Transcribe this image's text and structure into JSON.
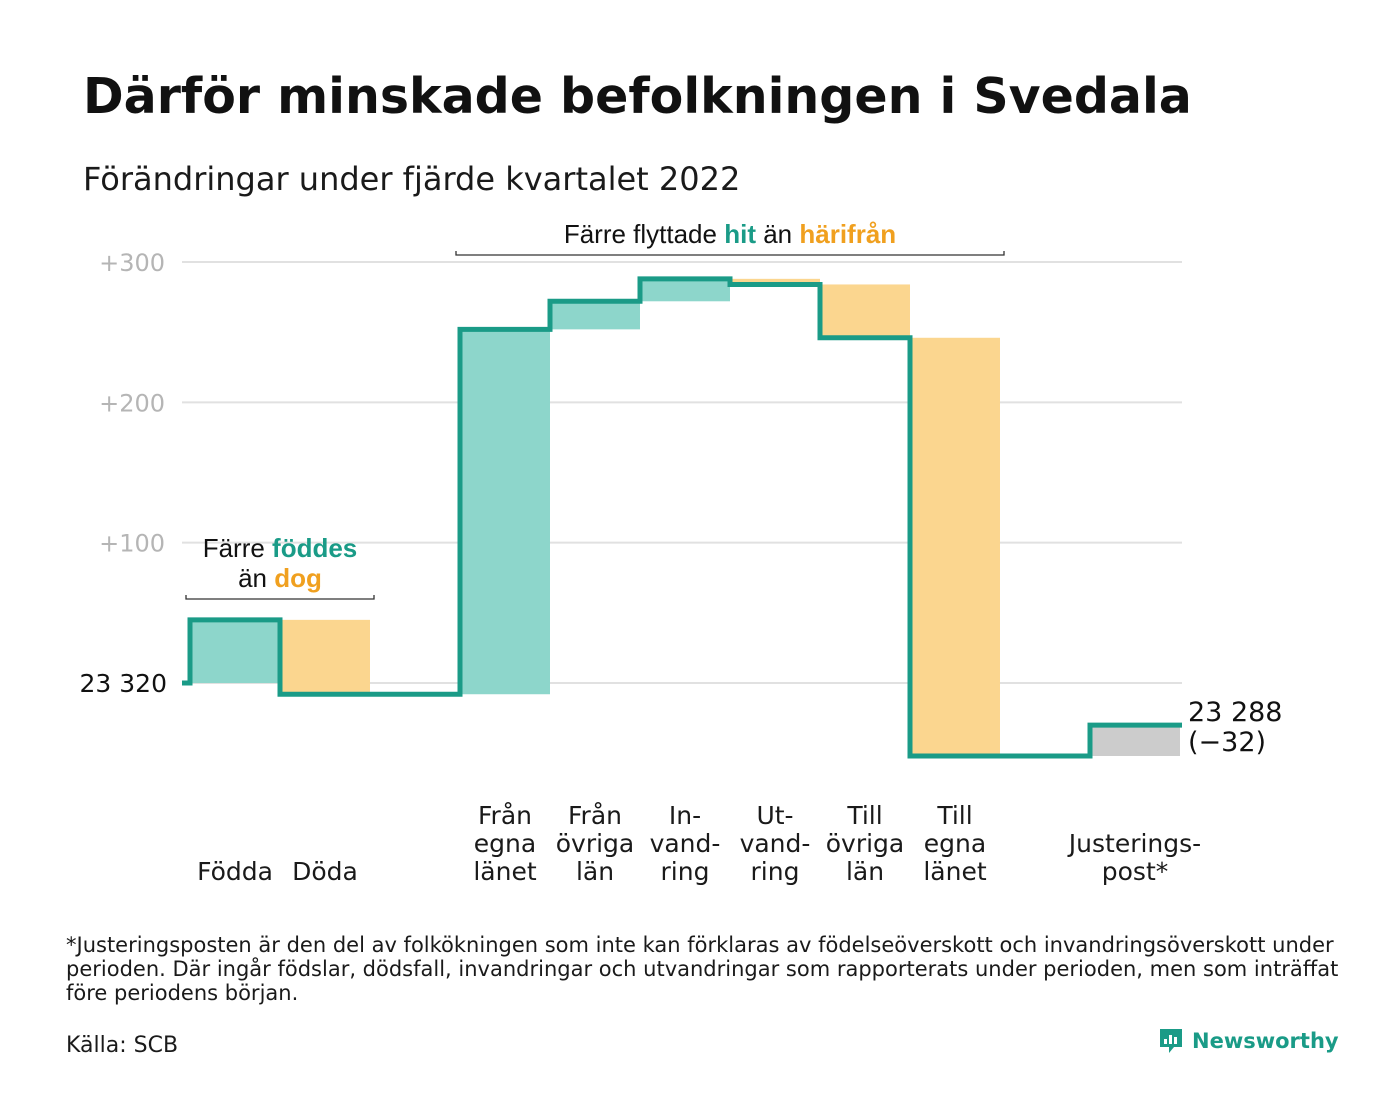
{
  "title": "Därför minskade befolkningen i Svedala",
  "subtitle": "Förändringar under fjärde kvartalet 2022",
  "footnote": "*Justeringsposten är den del av folkökningen som inte kan förklaras av födelseöverskott och invandringsöverskott under perioden. Där ingår födslar, dödsfall, invandringar och utvandringar som rapporterats under perioden, men som inträffat före periodens början.",
  "source": "Källa: SCB",
  "brand": {
    "name": "Newsworthy",
    "icon": "newsworthy-logo-icon"
  },
  "colors": {
    "increase": "#8dd6cb",
    "decrease": "#fbd68f",
    "adjustment": "#cccccc",
    "line": "#1a9b87",
    "accent_teal": "#1a9b87",
    "accent_orange": "#f0a01f",
    "grid": "#e1e1e1"
  },
  "chart_data": {
    "type": "waterfall",
    "start_value": 23320,
    "start_label": "23 320",
    "end_label_value": "23 288",
    "end_label_change": "(−32)",
    "ylim": [
      -57,
      300
    ],
    "y_ticks": [
      100,
      200,
      300
    ],
    "y_tick_labels": [
      "+100",
      "+200",
      "+300"
    ],
    "grid": true,
    "steps": [
      {
        "label": [
          "Födda"
        ],
        "value": 45,
        "kind": "increase"
      },
      {
        "label": [
          "Döda"
        ],
        "value": -53,
        "kind": "decrease"
      },
      {
        "label": [],
        "value": 0,
        "kind": "spacer"
      },
      {
        "label": [
          "Från",
          "egna",
          "länet"
        ],
        "value": 260,
        "kind": "increase"
      },
      {
        "label": [
          "Från",
          "övriga",
          "län"
        ],
        "value": 20,
        "kind": "increase"
      },
      {
        "label": [
          "In-",
          "vand-",
          "ring"
        ],
        "value": 16,
        "kind": "increase"
      },
      {
        "label": [
          "Ut-",
          "vand-",
          "ring"
        ],
        "value": -4,
        "kind": "decrease"
      },
      {
        "label": [
          "Till",
          "övriga",
          "län"
        ],
        "value": -38,
        "kind": "decrease"
      },
      {
        "label": [
          "Till",
          "egna",
          "länet"
        ],
        "value": -298,
        "kind": "decrease"
      },
      {
        "label": [],
        "value": 0,
        "kind": "spacer"
      },
      {
        "label": [
          "Justerings-",
          "post*"
        ],
        "value": 22,
        "kind": "adjustment"
      }
    ],
    "annotations": [
      {
        "lines": [
          [
            {
              "text": "Färre ",
              "color": "dark"
            },
            {
              "text": "föddes",
              "color": "teal"
            }
          ],
          [
            {
              "text": "än ",
              "color": "dark"
            },
            {
              "text": "dog",
              "color": "orange"
            }
          ]
        ],
        "from_step": 0,
        "to_step": 1
      },
      {
        "lines": [
          [
            {
              "text": "Färre flyttade ",
              "color": "dark"
            },
            {
              "text": "hit",
              "color": "teal"
            },
            {
              "text": " än ",
              "color": "dark"
            },
            {
              "text": "härifrån",
              "color": "orange"
            }
          ]
        ],
        "from_step": 3,
        "to_step": 8
      }
    ]
  }
}
